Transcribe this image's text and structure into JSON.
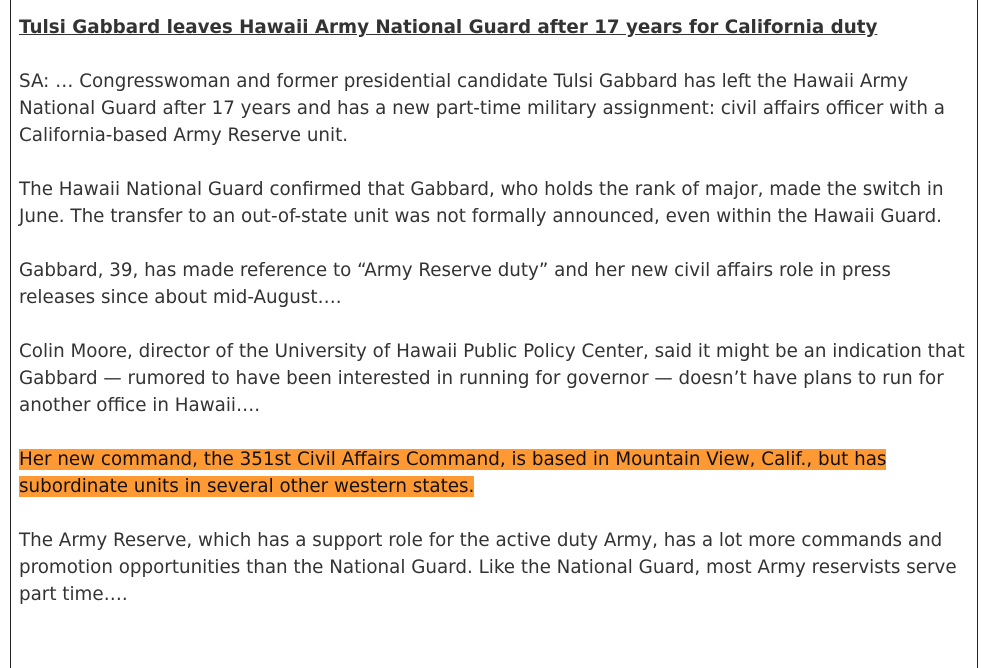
{
  "article": {
    "title": "Tulsi Gabbard leaves Hawaii Army National Guard after 17 years for California duty",
    "paragraphs": [
      "SA: … Congresswoman and former presidential candidate Tulsi Gabbard has left the Hawaii Army National Guard after 17 years and has a new part-time military assignment: civil affairs officer with a California-based Army Reserve unit.",
      "The Hawaii National Guard confirmed that Gabbard, who holds the rank of major, made the switch in June. The transfer to an out-of-state unit was not formally announced, even within the Hawaii Guard.",
      "Gabbard, 39, has made reference to “Army Reserve duty” and her new civil affairs role in press releases since about mid-August….",
      "Colin Moore, director of the University of Hawaii Public Policy Center, said it might be an indication that Gabbard — rumored to have been interested in running for governor — doesn’t have plans to run for another office in Hawaii….",
      "Her new command, the 351st Civil Affairs Command, is based in Mountain View, Calif., but has subordinate units in several other western states.",
      "The Army Reserve, which has a support role for the active duty Army, has a lot more commands and promotion opportunities than the National Guard. Like the National Guard, most Army reservists serve part time…."
    ],
    "highlight_color": "#ff9933"
  }
}
